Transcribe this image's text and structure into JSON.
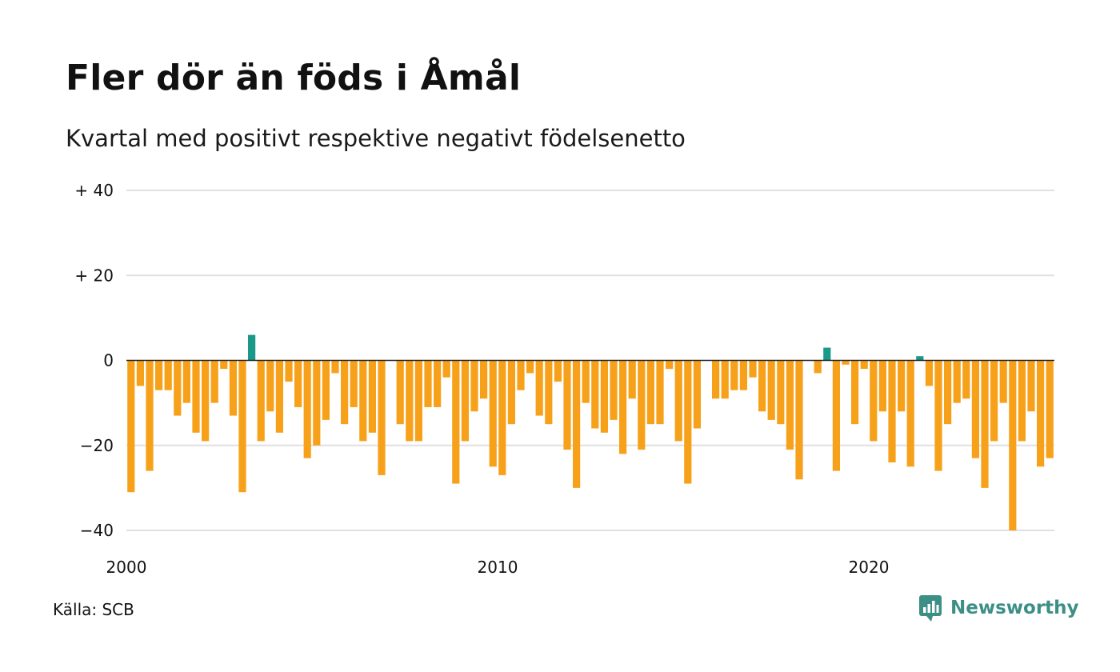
{
  "header": {
    "title": "Fler dör än föds i Åmål",
    "subtitle": "Kvartal med positivt respektive negativt födelsenetto"
  },
  "footer": {
    "source": "Källa: SCB",
    "brand": "Newsworthy"
  },
  "colors": {
    "positive": "#1a9988",
    "negative": "#f7a11a",
    "grid": "#e0e0e0",
    "zero_line": "#222222",
    "brand": "#3d8f86"
  },
  "chart_data": {
    "type": "bar",
    "x_start": "2000-Q1",
    "x_ticks": [
      {
        "label": "2000",
        "year": 2000
      },
      {
        "label": "2010",
        "year": 2010
      },
      {
        "label": "2020",
        "year": 2020
      }
    ],
    "y_ticks": [
      {
        "label": "+ 40",
        "value": 40
      },
      {
        "label": "+ 20",
        "value": 20
      },
      {
        "label": "0",
        "value": 0
      },
      {
        "label": "−20",
        "value": -20
      },
      {
        "label": "−40",
        "value": -40
      }
    ],
    "ylim": [
      -40,
      40
    ],
    "grid": true,
    "values": [
      -31,
      -6,
      -26,
      -7,
      -7,
      -13,
      -10,
      -17,
      -19,
      -10,
      -2,
      -13,
      -31,
      6,
      -19,
      -12,
      -17,
      -5,
      -11,
      -23,
      -20,
      -14,
      -3,
      -15,
      -11,
      -19,
      -17,
      -27,
      0,
      -15,
      -19,
      -19,
      -11,
      -11,
      -4,
      -29,
      -19,
      -12,
      -9,
      -25,
      -27,
      -15,
      -7,
      -3,
      -13,
      -15,
      -5,
      -21,
      -30,
      -10,
      -16,
      -17,
      -14,
      -22,
      -9,
      -21,
      -15,
      -15,
      -2,
      -19,
      -29,
      -16,
      0,
      -9,
      -9,
      -7,
      -7,
      -4,
      -12,
      -14,
      -15,
      -21,
      -28,
      0,
      -3,
      3,
      -26,
      -1,
      -15,
      -2,
      -19,
      -12,
      -24,
      -12,
      -25,
      1,
      -6,
      -26,
      -15,
      -10,
      -9,
      -23,
      -30,
      -19,
      -10,
      -40,
      -19,
      -12,
      -25,
      -23
    ]
  }
}
